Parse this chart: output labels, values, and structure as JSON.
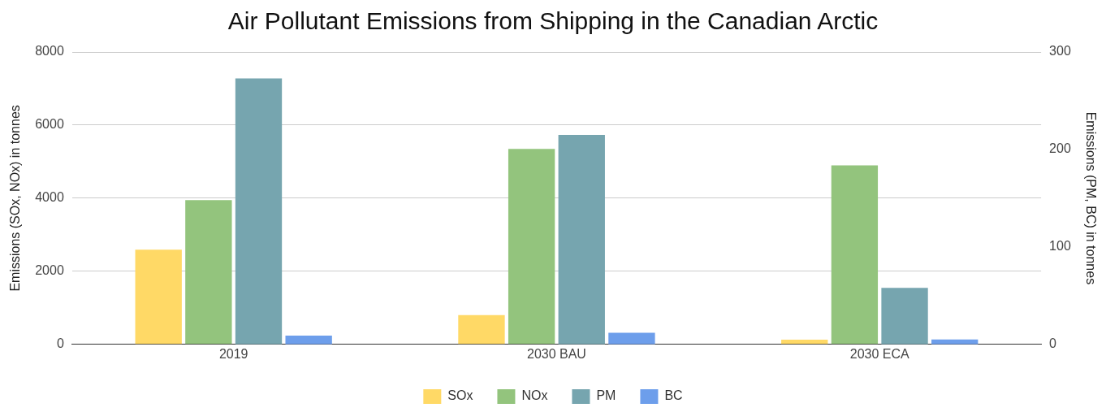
{
  "chart_data": {
    "type": "bar",
    "title": "Air Pollutant Emissions from Shipping in the Canadian Arctic",
    "ylabel": "Emissions (SOx, NOx) in tonnes",
    "y2label": "Emissions (PM, BC) in tonnes",
    "categories": [
      "2019",
      "2030 BAU",
      "2030 ECA"
    ],
    "series": [
      {
        "name": "SOx",
        "color": "#ffd966",
        "values": [
          2590,
          800,
          130
        ]
      },
      {
        "name": "NOx",
        "color": "#93c47d",
        "values": [
          3950,
          5350,
          4900
        ]
      },
      {
        "name": "PM",
        "color": "#76a5af",
        "values": [
          273,
          215,
          58
        ],
        "axis": "y2"
      },
      {
        "name": "BC",
        "color": "#6d9eeb",
        "values": [
          9,
          12,
          5
        ],
        "axis": "y2"
      }
    ],
    "ylim": [
      0,
      8000
    ],
    "yticks": [
      0,
      2000,
      4000,
      6000,
      8000
    ],
    "y2lim": [
      0,
      300
    ],
    "y2ticks": [
      0,
      100,
      200,
      300
    ],
    "grid": "y",
    "legend": "bottom"
  }
}
